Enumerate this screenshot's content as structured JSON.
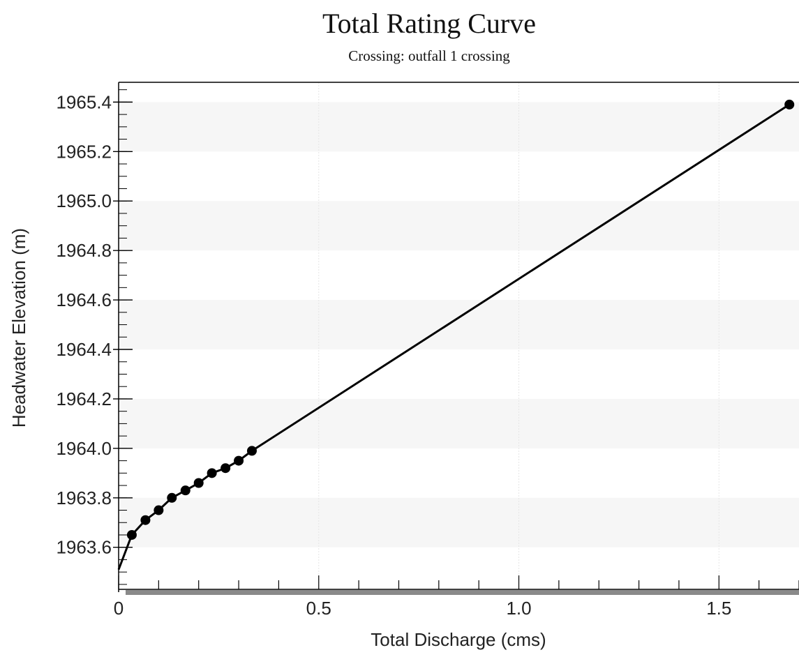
{
  "chart_data": {
    "type": "line",
    "title": "Total Rating Curve",
    "subtitle": "Crossing: outfall 1 crossing",
    "xlabel": "Total Discharge (cms)",
    "ylabel": "Headwater Elevation (m)",
    "xlim": [
      0,
      1.7
    ],
    "ylim": [
      1963.43,
      1965.48
    ],
    "x_ticks": [
      0,
      0.5,
      1.0,
      1.5
    ],
    "x_tick_labels": [
      "0",
      "0.5",
      "1.0",
      "1.5"
    ],
    "y_ticks": [
      1963.6,
      1963.8,
      1964.0,
      1964.2,
      1964.4,
      1964.6,
      1964.8,
      1965.0,
      1965.2,
      1965.4
    ],
    "y_tick_labels": [
      "1963.6",
      "1963.8",
      "1964.0",
      "1964.2",
      "1964.4",
      "1964.6",
      "1964.8",
      "1965.0",
      "1965.2",
      "1965.4"
    ],
    "grid": true,
    "series": [
      {
        "x": [
          0.0,
          0.033,
          0.067,
          0.1,
          0.133,
          0.167,
          0.2,
          0.233,
          0.267,
          0.3,
          0.333,
          1.676
        ],
        "y": [
          1963.51,
          1963.65,
          1963.71,
          1963.75,
          1963.8,
          1963.83,
          1963.86,
          1963.9,
          1963.92,
          1963.95,
          1963.99,
          1965.39
        ],
        "color": "#000000",
        "marker": "circle"
      }
    ]
  }
}
